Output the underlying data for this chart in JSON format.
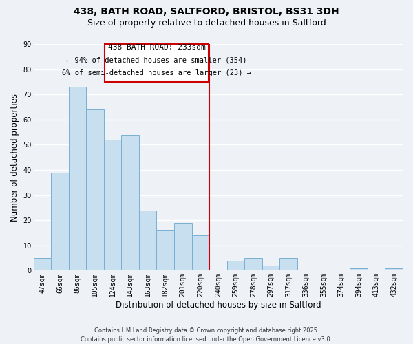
{
  "title": "438, BATH ROAD, SALTFORD, BRISTOL, BS31 3DH",
  "subtitle": "Size of property relative to detached houses in Saltford",
  "xlabel": "Distribution of detached houses by size in Saltford",
  "ylabel": "Number of detached properties",
  "bar_color": "#c8dff0",
  "bar_edge_color": "#7ab0d4",
  "background_color": "#eef2f7",
  "grid_color": "#ffffff",
  "categories": [
    "47sqm",
    "66sqm",
    "86sqm",
    "105sqm",
    "124sqm",
    "143sqm",
    "163sqm",
    "182sqm",
    "201sqm",
    "220sqm",
    "240sqm",
    "259sqm",
    "278sqm",
    "297sqm",
    "317sqm",
    "336sqm",
    "355sqm",
    "374sqm",
    "394sqm",
    "413sqm",
    "432sqm"
  ],
  "values": [
    5,
    39,
    73,
    64,
    52,
    54,
    24,
    16,
    19,
    14,
    0,
    4,
    5,
    2,
    5,
    0,
    0,
    0,
    1,
    0,
    1
  ],
  "ylim": [
    0,
    90
  ],
  "yticks": [
    0,
    10,
    20,
    30,
    40,
    50,
    60,
    70,
    80,
    90
  ],
  "vline_color": "#cc0000",
  "annotation_title": "438 BATH ROAD: 233sqm",
  "annotation_line1": "← 94% of detached houses are smaller (354)",
  "annotation_line2": "6% of semi-detached houses are larger (23) →",
  "annotation_box_color": "#cc0000",
  "footer_line1": "Contains HM Land Registry data © Crown copyright and database right 2025.",
  "footer_line2": "Contains public sector information licensed under the Open Government Licence v3.0.",
  "title_fontsize": 10,
  "subtitle_fontsize": 9,
  "label_fontsize": 8.5,
  "tick_fontsize": 7,
  "annotation_title_fontsize": 8,
  "annotation_body_fontsize": 7.5,
  "footer_fontsize": 6
}
